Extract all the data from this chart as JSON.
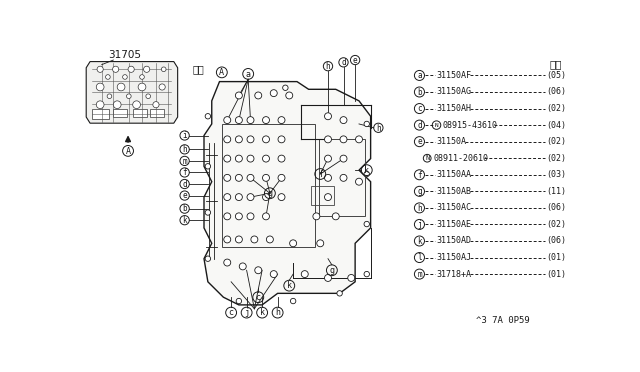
{
  "bg": "#ffffff",
  "dark": "#1a1a1a",
  "gray": "#888888",
  "part_number": "31705",
  "view_label": "矢視",
  "qty_label": "数量",
  "diagram_ref": "^3 7A 0P59",
  "legend": [
    {
      "letter": "a",
      "part": "31150AF",
      "qty": "＼05／"
    },
    {
      "letter": "b",
      "part": "31150AG",
      "qty": "＼06／"
    },
    {
      "letter": "c",
      "part": "31150AH",
      "qty": "＼02／"
    },
    {
      "letter": "d",
      "part": "08915-43610",
      "qty": "＼04／",
      "has_N": true
    },
    {
      "letter": "e",
      "part": "31150A",
      "qty": "＼02／"
    },
    {
      "letter": "",
      "part": "08911-20610",
      "qty": "＼02／",
      "has_N": true
    },
    {
      "letter": "f",
      "part": "31150AA",
      "qty": "＼03／"
    },
    {
      "letter": "g",
      "part": "31150AB",
      "qty": "＼11／"
    },
    {
      "letter": "h",
      "part": "31150AC",
      "qty": "＼06／"
    },
    {
      "letter": "j",
      "part": "31150AE",
      "qty": "＼02／"
    },
    {
      "letter": "k",
      "part": "31150AD",
      "qty": "＼06／"
    },
    {
      "letter": "l",
      "part": "31150AJ",
      "qty": "＼01／"
    },
    {
      "letter": "m",
      "part": "31718+A",
      "qty": "＼01／"
    }
  ]
}
